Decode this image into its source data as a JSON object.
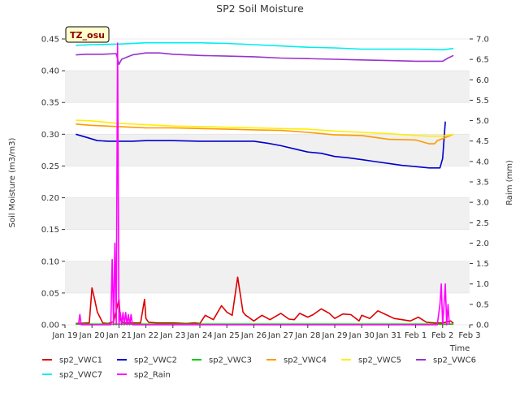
{
  "chart_data": {
    "type": "line",
    "title": "SP2 Soil Moisture",
    "site_label": "TZ_osu",
    "xlabel": "Time",
    "ylabel": "Soil Moisture (m3/m3)",
    "y2label": "Raim (mm)",
    "xlim": [
      0,
      15
    ],
    "ylim": [
      0,
      0.45
    ],
    "y2lim": [
      0,
      7.0
    ],
    "x_ticks": [
      {
        "x": 0,
        "label": "Jan 19"
      },
      {
        "x": 1,
        "label": "Jan 20"
      },
      {
        "x": 2,
        "label": "Jan 21"
      },
      {
        "x": 3,
        "label": "Jan 22"
      },
      {
        "x": 4,
        "label": "Jan 23"
      },
      {
        "x": 5,
        "label": "Jan 24"
      },
      {
        "x": 6,
        "label": "Jan 25"
      },
      {
        "x": 7,
        "label": "Jan 26"
      },
      {
        "x": 8,
        "label": "Jan 27"
      },
      {
        "x": 9,
        "label": "Jan 28"
      },
      {
        "x": 10,
        "label": "Jan 29"
      },
      {
        "x": 11,
        "label": "Jan 30"
      },
      {
        "x": 12,
        "label": "Jan 31"
      },
      {
        "x": 13,
        "label": "Feb 1"
      },
      {
        "x": 14,
        "label": "Feb 2"
      },
      {
        "x": 15,
        "label": "Feb 3"
      }
    ],
    "y_ticks": [
      "0.00",
      "0.05",
      "0.10",
      "0.15",
      "0.20",
      "0.25",
      "0.30",
      "0.35",
      "0.40",
      "0.45"
    ],
    "y2_ticks": [
      "0.0",
      "0.5",
      "1.0",
      "1.5",
      "2.0",
      "2.5",
      "3.0",
      "3.5",
      "4.0",
      "4.5",
      "5.0",
      "5.5",
      "6.0",
      "6.5",
      "7.0"
    ],
    "grid": "horizontal bands",
    "legend_position": "bottom",
    "series": [
      {
        "name": "sp2_VWC1",
        "color": "#dd0000",
        "axis": "left",
        "x": [
          0.4,
          0.9,
          1.0,
          1.1,
          1.2,
          1.4,
          1.6,
          1.8,
          2.0,
          2.05,
          2.1,
          2.2,
          2.5,
          2.8,
          2.95,
          3.0,
          3.1,
          3.4,
          4.0,
          4.5,
          4.8,
          5.0,
          5.2,
          5.5,
          5.8,
          6.0,
          6.2,
          6.4,
          6.6,
          6.7,
          6.8,
          7.0,
          7.3,
          7.6,
          8.0,
          8.3,
          8.5,
          8.7,
          9.0,
          9.2,
          9.5,
          9.8,
          10.0,
          10.3,
          10.6,
          10.9,
          11.0,
          11.3,
          11.6,
          11.9,
          12.2,
          12.5,
          12.8,
          13.1,
          13.4,
          13.7,
          14.0,
          14.3,
          14.4
        ],
        "y": [
          0.002,
          0.003,
          0.058,
          0.04,
          0.02,
          0.003,
          0.002,
          0.005,
          0.04,
          0.01,
          0.004,
          0.003,
          0.003,
          0.003,
          0.04,
          0.01,
          0.004,
          0.003,
          0.003,
          0.002,
          0.003,
          0.002,
          0.015,
          0.008,
          0.03,
          0.02,
          0.015,
          0.075,
          0.02,
          0.015,
          0.012,
          0.006,
          0.015,
          0.008,
          0.018,
          0.009,
          0.008,
          0.018,
          0.012,
          0.016,
          0.025,
          0.018,
          0.01,
          0.017,
          0.016,
          0.006,
          0.015,
          0.01,
          0.022,
          0.016,
          0.01,
          0.008,
          0.006,
          0.012,
          0.004,
          0.003,
          0.003,
          0.006,
          0.002
        ]
      },
      {
        "name": "sp2_VWC2",
        "color": "#0000cc",
        "axis": "left",
        "x": [
          0.4,
          0.8,
          1.2,
          1.6,
          2.0,
          2.5,
          3.0,
          3.5,
          4.0,
          5.0,
          6.0,
          7.0,
          7.5,
          8.0,
          8.5,
          9.0,
          9.5,
          10.0,
          10.5,
          11.0,
          11.5,
          12.0,
          12.5,
          13.0,
          13.5,
          13.9,
          14.0,
          14.1
        ],
        "y": [
          0.3,
          0.295,
          0.29,
          0.289,
          0.289,
          0.289,
          0.29,
          0.29,
          0.29,
          0.289,
          0.289,
          0.289,
          0.286,
          0.282,
          0.277,
          0.272,
          0.27,
          0.265,
          0.263,
          0.26,
          0.257,
          0.254,
          0.251,
          0.249,
          0.247,
          0.247,
          0.262,
          0.32
        ]
      },
      {
        "name": "sp2_VWC3",
        "color": "#00cc00",
        "axis": "left",
        "x": [
          0.4,
          14.4
        ],
        "y": [
          0.001,
          0.001
        ]
      },
      {
        "name": "sp2_VWC4",
        "color": "#ff9900",
        "axis": "left",
        "x": [
          0.4,
          1.0,
          2.0,
          3.0,
          4.0,
          5.0,
          6.0,
          7.0,
          8.0,
          9.0,
          10.0,
          11.0,
          12.0,
          13.0,
          13.5,
          13.7,
          13.8,
          14.0,
          14.4
        ],
        "y": [
          0.316,
          0.314,
          0.312,
          0.31,
          0.31,
          0.309,
          0.308,
          0.307,
          0.306,
          0.303,
          0.299,
          0.298,
          0.292,
          0.291,
          0.285,
          0.285,
          0.29,
          0.293,
          0.3
        ]
      },
      {
        "name": "sp2_VWC5",
        "color": "#ffee00",
        "axis": "left",
        "x": [
          0.4,
          1.0,
          2.0,
          3.0,
          4.0,
          5.0,
          6.0,
          7.0,
          8.0,
          9.0,
          10.0,
          11.0,
          12.0,
          13.0,
          13.5,
          14.0,
          14.4
        ],
        "y": [
          0.322,
          0.321,
          0.317,
          0.315,
          0.313,
          0.312,
          0.311,
          0.31,
          0.309,
          0.308,
          0.305,
          0.303,
          0.301,
          0.298,
          0.297,
          0.297,
          0.3
        ]
      },
      {
        "name": "sp2_VWC6",
        "color": "#9933cc",
        "axis": "left",
        "x": [
          0.4,
          0.8,
          1.0,
          1.4,
          1.9,
          2.0,
          2.1,
          2.5,
          3.0,
          3.5,
          4.0,
          5.0,
          6.0,
          7.0,
          8.0,
          9.0,
          10.0,
          11.0,
          12.0,
          13.0,
          14.0,
          14.2,
          14.4
        ],
        "y": [
          0.425,
          0.426,
          0.426,
          0.426,
          0.427,
          0.41,
          0.418,
          0.425,
          0.428,
          0.428,
          0.426,
          0.424,
          0.423,
          0.422,
          0.42,
          0.419,
          0.418,
          0.417,
          0.416,
          0.415,
          0.415,
          0.42,
          0.424
        ]
      },
      {
        "name": "sp2_VWC7",
        "color": "#00eeee",
        "axis": "left",
        "x": [
          0.4,
          1.0,
          2.0,
          3.0,
          4.0,
          5.0,
          6.0,
          7.0,
          8.0,
          9.0,
          10.0,
          11.0,
          12.0,
          13.0,
          14.0,
          14.4
        ],
        "y": [
          0.44,
          0.441,
          0.442,
          0.444,
          0.444,
          0.444,
          0.443,
          0.441,
          0.439,
          0.437,
          0.436,
          0.434,
          0.434,
          0.434,
          0.433,
          0.435
        ]
      },
      {
        "name": "sp2_Rain",
        "color": "#ff00ff",
        "axis": "right",
        "x": [
          0.5,
          0.55,
          0.6,
          0.65,
          1.7,
          1.75,
          1.8,
          1.85,
          1.9,
          1.95,
          2.0,
          2.05,
          2.1,
          2.15,
          2.2,
          2.25,
          2.3,
          2.35,
          2.4,
          2.45,
          2.5,
          13.8,
          13.9,
          13.95,
          14.0,
          14.05,
          14.1,
          14.15,
          14.2,
          14.25
        ],
        "y": [
          0,
          0.25,
          0,
          0,
          0,
          1.6,
          0,
          2.0,
          0,
          6.9,
          0,
          0.3,
          0,
          0.3,
          0,
          0.3,
          0,
          0.25,
          0,
          0.25,
          0,
          0,
          0.5,
          1.0,
          0,
          0.5,
          1.0,
          0,
          0.5,
          0
        ]
      }
    ]
  }
}
